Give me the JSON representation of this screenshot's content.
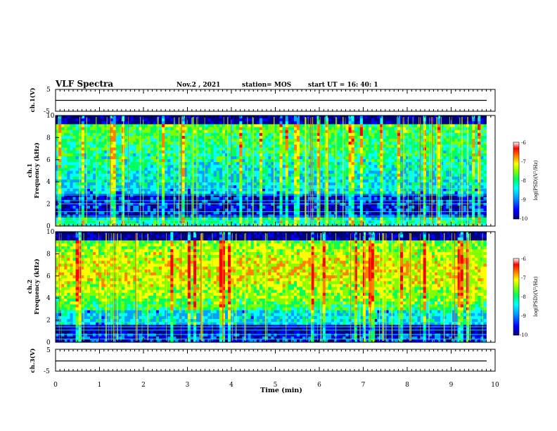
{
  "header": {
    "title": "VLF Spectra",
    "date": "Nov.2 , 2021",
    "station": "station= MOS",
    "start": "start UT = 16: 40: 1"
  },
  "chart_data": [
    {
      "type": "line",
      "name": "ch1-waveform",
      "ylabel": "ch.1(V)",
      "xlim": [
        0,
        10
      ],
      "ylim": [
        -5,
        5
      ],
      "yticks": [
        "5",
        "-5"
      ],
      "description_value": 0
    },
    {
      "type": "heatmap",
      "name": "ch1-spectrogram",
      "ylabel": "ch.1\nFrequency (kHz)",
      "ylabel_lines": [
        "ch.1",
        "Frequency (kHz)"
      ],
      "xlim": [
        0,
        10
      ],
      "ylim": [
        0,
        10
      ],
      "yticks": [
        "0",
        "2",
        "4",
        "6",
        "8",
        "10"
      ],
      "data_end_min": 9.8,
      "colorbar": {
        "label": "log(PSD)(V²/Hz)",
        "range": [
          -10,
          -6
        ],
        "ticks": [
          "-6",
          "-7",
          "-8",
          "-9",
          "-10"
        ]
      }
    },
    {
      "type": "heatmap",
      "name": "ch2-spectrogram",
      "ylabel": "ch.2\nFrequency (kHz)",
      "ylabel_lines": [
        "ch.2",
        "Frequency (kHz)"
      ],
      "xlim": [
        0,
        10
      ],
      "ylim": [
        0,
        10
      ],
      "yticks": [
        "0",
        "2",
        "4",
        "6",
        "8",
        "10"
      ],
      "data_end_min": 9.8,
      "colorbar": {
        "label": "log(PSD)(V²/Hz)",
        "range": [
          -10,
          -6
        ],
        "ticks": [
          "-6",
          "-7",
          "-8",
          "-9",
          "-10"
        ]
      }
    },
    {
      "type": "line",
      "name": "ch3-waveform",
      "ylabel": "ch.3(V)",
      "xlim": [
        0,
        10
      ],
      "ylim": [
        -5,
        5
      ],
      "yticks": [
        "5",
        "-5"
      ],
      "description_value": 0
    }
  ],
  "xaxis": {
    "label": "Time (min)",
    "ticks": [
      "0",
      "1",
      "2",
      "3",
      "4",
      "5",
      "6",
      "7",
      "8",
      "9",
      "10"
    ]
  },
  "colormap": [
    "#00007f",
    "#0000ff",
    "#00a0ff",
    "#00ffff",
    "#00ff60",
    "#80ff00",
    "#ffff00",
    "#ff8000",
    "#ff0000",
    "#ffffff"
  ]
}
